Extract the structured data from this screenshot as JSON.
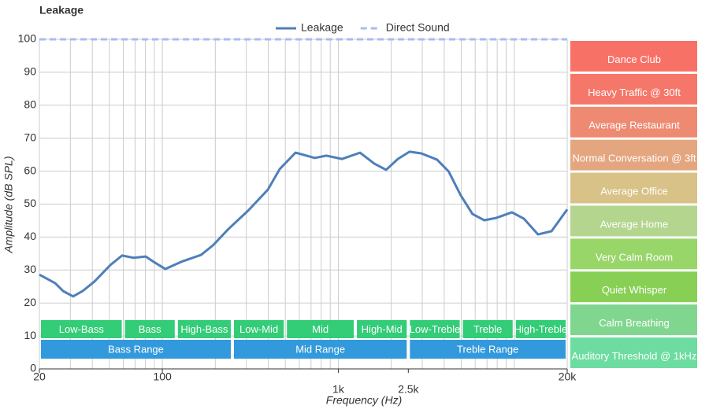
{
  "chart_data": {
    "type": "line",
    "title": "Leakage",
    "x_label": "Frequency (Hz)",
    "y_label": "Amplitude (dB SPL)",
    "x_log": true,
    "grid": true,
    "xlim": [
      20,
      20000
    ],
    "ylim": [
      0,
      100
    ],
    "yticks": [
      0,
      10,
      20,
      30,
      40,
      50,
      60,
      70,
      80,
      90,
      100
    ],
    "xticks": [
      20,
      100,
      {
        "value": 1000,
        "label": "1k"
      },
      {
        "value": 2500,
        "label": "2.5k"
      },
      {
        "value": 20000,
        "label": "20k"
      }
    ],
    "xgrid": [
      20,
      30,
      40,
      50,
      60,
      70,
      80,
      90,
      100,
      200,
      300,
      400,
      500,
      600,
      700,
      800,
      900,
      1000,
      2000,
      3000,
      4000,
      5000,
      6000,
      7000,
      8000,
      9000,
      10000,
      20000
    ],
    "series": [
      {
        "name": "Leakage",
        "color": "#4e7fba",
        "dashed": false,
        "x": [
          20,
          24.6,
          27.3,
          31.1,
          35.2,
          41.1,
          50.6,
          59,
          68.8,
          80.4,
          91,
          104,
          128,
          166,
          194,
          238,
          307,
          398,
          464,
          571,
          631,
          735,
          857,
          1050,
          1330,
          1600,
          1870,
          2180,
          2540,
          2960,
          3640,
          4240,
          4960,
          5790,
          6760,
          7890,
          9700,
          11330,
          13640,
          16300,
          20000
        ],
        "values": [
          28.6,
          26,
          23.6,
          22,
          23.6,
          26.5,
          31.5,
          34.4,
          33.7,
          34.1,
          32.2,
          30.3,
          32.5,
          34.6,
          37.5,
          42.5,
          48,
          54.4,
          60.6,
          65.6,
          65,
          64,
          64.7,
          63.7,
          65.6,
          62.3,
          60.4,
          63.7,
          65.9,
          65.4,
          63.5,
          59.9,
          52.7,
          47,
          45.1,
          45.8,
          47.5,
          45.6,
          40.8,
          41.8,
          48.4
        ]
      },
      {
        "name": "Direct Sound",
        "color": "#aabbf5",
        "dashed": true,
        "x": [
          20,
          20000
        ],
        "values": [
          100,
          100
        ]
      }
    ],
    "bands": [
      {
        "label": "Low-Bass",
        "from": 20,
        "to": 60
      },
      {
        "label": "Bass",
        "from": 60,
        "to": 120
      },
      {
        "label": "High-Bass",
        "from": 120,
        "to": 250
      },
      {
        "label": "Low-Mid",
        "from": 250,
        "to": 500
      },
      {
        "label": "Mid",
        "from": 500,
        "to": 1250
      },
      {
        "label": "High-Mid",
        "from": 1250,
        "to": 2500
      },
      {
        "label": "Low-Treble",
        "from": 2500,
        "to": 5000
      },
      {
        "label": "Treble",
        "from": 5000,
        "to": 10000
      },
      {
        "label": "High-Treble",
        "from": 10000,
        "to": 20000
      }
    ],
    "band_color": "#33cc77",
    "ranges": [
      {
        "label": "Bass Range",
        "from": 20,
        "to": 250
      },
      {
        "label": "Mid Range",
        "from": 250,
        "to": 2500
      },
      {
        "label": "Treble Range",
        "from": 2500,
        "to": 20000
      }
    ],
    "range_color": "#3399dd",
    "levels": [
      {
        "label": "Dance Club",
        "low": 90,
        "high": 100,
        "color": "#f87167"
      },
      {
        "label": "Heavy Traffic @ 30ft",
        "low": 80,
        "high": 90,
        "color": "#f5776a"
      },
      {
        "label": "Average Restaurant",
        "low": 70,
        "high": 80,
        "color": "#ee8a72"
      },
      {
        "label": "Normal Conversation @ 3ft",
        "low": 60,
        "high": 70,
        "color": "#e4a67e"
      },
      {
        "label": "Average Office",
        "low": 50,
        "high": 60,
        "color": "#d8c287"
      },
      {
        "label": "Average Home",
        "low": 40,
        "high": 50,
        "color": "#b4d58e"
      },
      {
        "label": "Very Calm Room",
        "low": 30,
        "high": 40,
        "color": "#99d66a"
      },
      {
        "label": "Quiet Whisper",
        "low": 20,
        "high": 30,
        "color": "#88d055"
      },
      {
        "label": "Calm Breathing",
        "low": 10,
        "high": 20,
        "color": "#80d68e"
      },
      {
        "label": "Auditory Threshold @ 1kHz",
        "low": 0,
        "high": 10,
        "color": "#6cdca0"
      }
    ]
  }
}
